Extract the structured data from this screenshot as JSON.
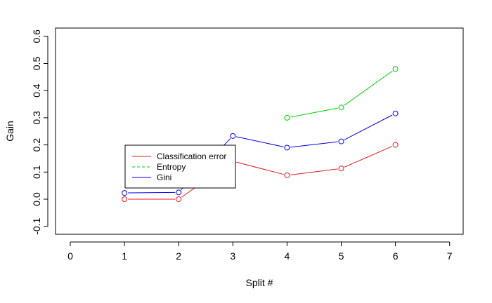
{
  "chart_data": {
    "type": "line",
    "title": "",
    "xlabel": "Split #",
    "ylabel": "Gain",
    "xlim": [
      0,
      7
    ],
    "ylim": [
      -0.1,
      0.6
    ],
    "x_ticks": [
      "0",
      "1",
      "2",
      "3",
      "4",
      "5",
      "6",
      "7"
    ],
    "y_ticks": [
      "-0.1",
      "0.0",
      "0.1",
      "0.2",
      "0.3",
      "0.4",
      "0.5",
      "0.6"
    ],
    "grid": false,
    "legend_position": "center-left",
    "series": [
      {
        "name": "Classification error",
        "color": "#e31a1c",
        "line_style": "solid",
        "points": [
          [
            1,
            0.0
          ],
          [
            2,
            0.0
          ],
          [
            3,
            0.14
          ],
          [
            4,
            0.088
          ],
          [
            5,
            0.113
          ],
          [
            6,
            0.2
          ]
        ]
      },
      {
        "name": "Entropy",
        "color": "#00cc00",
        "line_style": "dashed",
        "points": [
          [
            4,
            0.3
          ],
          [
            5,
            0.338
          ],
          [
            6,
            0.48
          ]
        ]
      },
      {
        "name": "Gini",
        "color": "#0000ee",
        "line_style": "solid",
        "points": [
          [
            1,
            0.023
          ],
          [
            2,
            0.025
          ],
          [
            3,
            0.233
          ],
          [
            4,
            0.19
          ],
          [
            5,
            0.213
          ],
          [
            6,
            0.316
          ]
        ]
      }
    ]
  }
}
